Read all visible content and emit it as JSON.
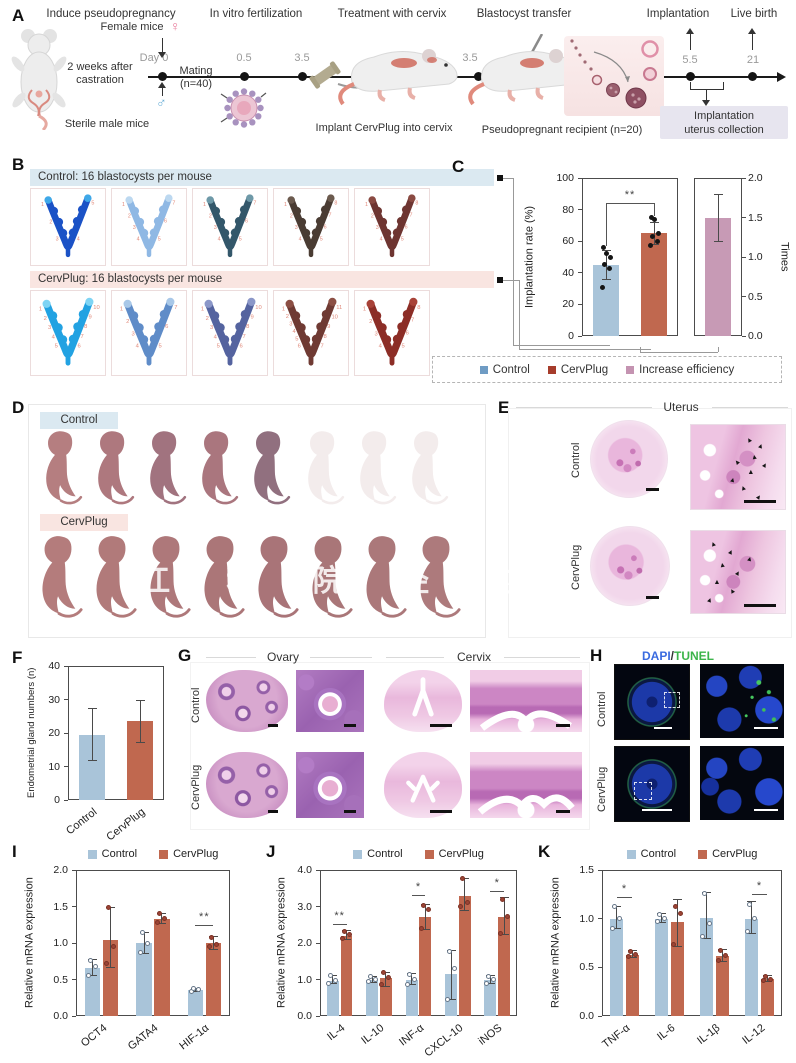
{
  "panelA": {
    "label": "A",
    "stage_titles": [
      "Induce pseudopregnancy",
      "In vitro fertilization",
      "Treatment with cervix",
      "Blastocyst transfer",
      "Implantation",
      "Live birth"
    ],
    "female_label": "Female mice",
    "female_symbol": "♀",
    "male_symbol": "♂",
    "castration1": "2 weeks after",
    "castration2": "castration",
    "male_label": "Sterile male mice",
    "day0": "Day 0",
    "mating1": "Mating",
    "mating2": "(n=40)",
    "t05": "0.5",
    "t35a": "3.5",
    "t35b": "3.5",
    "t55": "5.5",
    "t21": "21",
    "implant_label": "Implant CervPlug into cervix",
    "recipient_label": "Pseudopregnant recipient (n=20)",
    "collection1": "Implantation",
    "collection2": "uterus collection"
  },
  "panelB": {
    "label": "B",
    "control_header": "Control: 16 blastocysts per mouse",
    "cervplug_header": "CervPlug: 16 blastocysts per mouse",
    "control_uteri": [
      {
        "color": "#1b52c6",
        "tip": "#3fa8e8",
        "sites": 5
      },
      {
        "color": "#8fb8e4",
        "tip": "#bcd8f0",
        "sites": 7
      },
      {
        "color": "#33576a",
        "tip": "#6e99a8",
        "sites": 7
      },
      {
        "color": "#4a3c33",
        "tip": "#6b5a4e",
        "sites": 8
      },
      {
        "color": "#6e3531",
        "tip": "#8a4a42",
        "sites": 8
      }
    ],
    "cervplug_uteri": [
      {
        "color": "#22a2e2",
        "tip": "#7fd4f4",
        "sites": 10
      },
      {
        "color": "#5f8cc8",
        "tip": "#a9c8e8",
        "sites": 7
      },
      {
        "color": "#54639f",
        "tip": "#8b97c8",
        "sites": 10
      },
      {
        "color": "#6f3a33",
        "tip": "#8c4f44",
        "sites": 11
      },
      {
        "color": "#8c2d26",
        "tip": "#a84238",
        "sites": 8
      }
    ]
  },
  "panelC": {
    "label": "C",
    "legend": [
      {
        "label": "Control",
        "color": "#6f9cc4"
      },
      {
        "label": "CervPlug",
        "color": "#a63c2b"
      },
      {
        "label": "Increase efficiency",
        "color": "#c493b1"
      }
    ]
  },
  "panelD": {
    "label": "D",
    "control_header": "Control",
    "cervplug_header": "CervPlug",
    "watermark": "江 科 院 经 的",
    "control_pups": [
      "#b57e80",
      "#ae787e",
      "#a1737f",
      "#aa767e",
      "#91707f",
      "#f3ecec",
      "#f3ecec",
      "#f3ecec"
    ],
    "cervplug_pups": [
      "#b47c7c",
      "#b17a7a",
      "#ae787a",
      "#ab7678",
      "#a97478",
      "#a97678",
      "#ab787a",
      "#ad7a7c"
    ]
  },
  "panelE": {
    "label": "E",
    "title": "Uterus",
    "row1": "Control",
    "row2": "CervPlug"
  },
  "panelF": {
    "label": "F"
  },
  "panelG": {
    "label": "G",
    "header1": "Ovary",
    "header2": "Cervix",
    "row1": "Control",
    "row2": "CervPlug"
  },
  "panelH": {
    "label": "H",
    "title_dapi": "DAPI",
    "title_sep": "/",
    "title_tunel": "TUNEL",
    "dapi_color": "#3a6be0",
    "tunel_color": "#3cb44a",
    "row1": "Control",
    "row2": "CervPlug"
  },
  "panelI": {
    "label": "I"
  },
  "panelJ": {
    "label": "J"
  },
  "panelK": {
    "label": "K"
  },
  "colors": {
    "control_bar": "#a9c4d9",
    "cervplug_bar": "#c0684f",
    "efficiency_bar": "#c79ab5",
    "control_band": "#dbe9f1",
    "cervplug_band": "#f9e5e1",
    "collection_box": "#e7e5ef",
    "site_number": "#e0897a"
  },
  "chart_data": [
    {
      "id": "implantation_rate",
      "type": "bar",
      "ylabel": "Implantation rate (%)",
      "ylim": [
        0,
        100
      ],
      "yticks": [
        0,
        20,
        40,
        60,
        80,
        100
      ],
      "ydec": 0,
      "categories": [
        "Control",
        "CervPlug"
      ],
      "show_xticklabels": false,
      "series": [
        {
          "name": "Implantation rate",
          "colors": [
            "#a9c4d9",
            "#c0684f"
          ],
          "values": [
            45,
            65
          ],
          "err": [
            [
              36,
              54
            ],
            [
              58,
              72
            ]
          ],
          "dots": [
            [
              31,
              43,
              45,
              50,
              52,
              56
            ],
            [
              57,
              60,
              63,
              65,
              74,
              75
            ]
          ],
          "dot_style": {
            "fill": "#151515",
            "stroke": "#151515"
          }
        }
      ],
      "sig": [
        {
          "cats": [
            0,
            1
          ],
          "y": 84,
          "label": "**",
          "drops": [
            57,
            76
          ]
        }
      ]
    },
    {
      "id": "increase_efficiency",
      "type": "bar",
      "ylabel": "Times",
      "yaxis": "right",
      "ylim": [
        0,
        2
      ],
      "yticks": [
        0,
        0.5,
        1,
        1.5,
        2
      ],
      "ydec": 1,
      "categories": [
        "Increase efficiency"
      ],
      "show_xticklabels": false,
      "series": [
        {
          "name": "Increase efficiency",
          "colors": [
            "#c79ab5"
          ],
          "values": [
            1.49
          ],
          "err": [
            [
              1.2,
              1.79
            ]
          ]
        }
      ]
    },
    {
      "id": "endometrial_glands",
      "type": "bar",
      "ylabel": "Endometrial gland numbers (n)",
      "ylim": [
        0,
        40
      ],
      "yticks": [
        0,
        10,
        20,
        30,
        40
      ],
      "ydec": 0,
      "categories": [
        "Control",
        "CervPlug"
      ],
      "rot_xticklabels": true,
      "series": [
        {
          "name": "Gland numbers",
          "colors": [
            "#a9c4d9",
            "#c0684f"
          ],
          "values": [
            19.5,
            23.5
          ],
          "err": [
            [
              11.8,
              27.3
            ],
            [
              17.3,
              29.8
            ]
          ]
        }
      ]
    },
    {
      "id": "mrna_stemness",
      "type": "bar",
      "ylabel": "Relative mRNA expression",
      "ylim": [
        0,
        2
      ],
      "yticks": [
        0,
        0.5,
        1,
        1.5,
        2
      ],
      "ydec": 1,
      "categories": [
        "OCT4",
        "GATA4",
        "HIF-1α"
      ],
      "rot_xticklabels": true,
      "legend": [
        "Control",
        "CervPlug"
      ],
      "series": [
        {
          "name": "Control",
          "color": "#a9c4d9",
          "values": [
            0.66,
            1.0,
            0.35
          ],
          "err": [
            [
              0.55,
              0.77
            ],
            [
              0.86,
              1.15
            ],
            [
              0.33,
              0.37
            ]
          ],
          "dots": [
            [
              0.55,
              0.68,
              0.76
            ],
            [
              0.87,
              1.0,
              1.14
            ],
            [
              0.34,
              0.36,
              0.37
            ]
          ],
          "dot_style": {
            "fill": "#ffffff",
            "stroke": "#68788a"
          }
        },
        {
          "name": "CervPlug",
          "color": "#c0684f",
          "values": [
            1.04,
            1.33,
            1.0
          ],
          "err": [
            [
              0.66,
              1.48
            ],
            [
              1.27,
              1.4
            ],
            [
              0.91,
              1.09
            ]
          ],
          "dots": [
            [
              0.72,
              0.95,
              1.48
            ],
            [
              1.28,
              1.33,
              1.4
            ],
            [
              0.95,
              0.98,
              1.08
            ]
          ],
          "dot_style": {
            "fill": "#9c4435",
            "stroke": "#7c3225"
          }
        }
      ],
      "sig": [
        {
          "group": 2,
          "y": 1.25,
          "label": "**"
        }
      ]
    },
    {
      "id": "mrna_cytokines_up",
      "type": "bar",
      "ylabel": "Relative mRNA expression",
      "ylim": [
        0,
        4
      ],
      "yticks": [
        0,
        1,
        2,
        3,
        4
      ],
      "ydec": 1,
      "categories": [
        "IL-4",
        "IL-10",
        "INF-α",
        "CXCL-10",
        "iNOS"
      ],
      "rot_xticklabels": true,
      "legend": [
        "Control",
        "CervPlug"
      ],
      "series": [
        {
          "name": "Control",
          "color": "#a9c4d9",
          "values": [
            0.97,
            1.0,
            1.0,
            1.15,
            1.0
          ],
          "err": [
            [
              0.9,
              1.1
            ],
            [
              0.93,
              1.08
            ],
            [
              0.85,
              1.16
            ],
            [
              0.45,
              1.8
            ],
            [
              0.88,
              1.1
            ]
          ],
          "dots": [
            [
              0.9,
              0.98,
              1.1
            ],
            [
              0.95,
              1.0,
              1.07
            ],
            [
              0.86,
              1.0,
              1.15
            ],
            [
              0.46,
              1.3,
              1.78
            ],
            [
              0.9,
              1.0,
              1.08
            ]
          ],
          "dot_style": {
            "fill": "#ffffff",
            "stroke": "#68788a"
          }
        },
        {
          "name": "CervPlug",
          "color": "#c0684f",
          "values": [
            2.2,
            1.03,
            2.72,
            3.3,
            2.72
          ],
          "err": [
            [
              2.1,
              2.33
            ],
            [
              0.82,
              1.2
            ],
            [
              2.36,
              3.05
            ],
            [
              2.9,
              3.78
            ],
            [
              2.22,
              3.25
            ]
          ],
          "dots": [
            [
              2.12,
              2.22,
              2.32
            ],
            [
              0.85,
              1.05,
              1.18
            ],
            [
              2.4,
              2.92,
              3.02
            ],
            [
              3.0,
              3.12,
              3.76
            ],
            [
              2.26,
              2.72,
              3.2
            ]
          ],
          "dot_style": {
            "fill": "#9c4435",
            "stroke": "#7c3225"
          }
        }
      ],
      "sig": [
        {
          "group": 0,
          "y": 2.52,
          "label": "**"
        },
        {
          "group": 2,
          "y": 3.32,
          "label": "*"
        },
        {
          "group": 4,
          "y": 3.42,
          "label": "*"
        }
      ]
    },
    {
      "id": "mrna_cytokines_down",
      "type": "bar",
      "ylabel": "Relative mRNA expression",
      "ylim": [
        0,
        1.5
      ],
      "yticks": [
        0,
        0.5,
        1,
        1.5
      ],
      "ydec": 1,
      "categories": [
        "TNF-α",
        "IL-6",
        "IL-1β",
        "IL-12"
      ],
      "rot_xticklabels": true,
      "legend": [
        "Control",
        "CervPlug"
      ],
      "series": [
        {
          "name": "Control",
          "color": "#a9c4d9",
          "values": [
            1.0,
            1.0,
            1.01,
            1.0
          ],
          "err": [
            [
              0.9,
              1.12
            ],
            [
              0.96,
              1.05
            ],
            [
              0.8,
              1.27
            ],
            [
              0.85,
              1.18
            ]
          ],
          "dots": [
            [
              0.9,
              1.0,
              1.12
            ],
            [
              0.97,
              1.0,
              1.04
            ],
            [
              0.82,
              0.95,
              1.26
            ],
            [
              0.87,
              1.0,
              1.15
            ]
          ],
          "dot_style": {
            "fill": "#ffffff",
            "stroke": "#68788a"
          }
        },
        {
          "name": "CervPlug",
          "color": "#c0684f",
          "values": [
            0.63,
            0.97,
            0.62,
            0.38
          ],
          "err": [
            [
              0.6,
              0.67
            ],
            [
              0.71,
              1.2
            ],
            [
              0.56,
              0.68
            ],
            [
              0.35,
              0.42
            ]
          ],
          "dots": [
            [
              0.61,
              0.63,
              0.66
            ],
            [
              0.73,
              1.05,
              1.12
            ],
            [
              0.57,
              0.62,
              0.67
            ],
            [
              0.36,
              0.38,
              0.41
            ]
          ],
          "dot_style": {
            "fill": "#9c4435",
            "stroke": "#7c3225"
          }
        }
      ],
      "sig": [
        {
          "group": 0,
          "y": 1.22,
          "label": "*"
        },
        {
          "group": 3,
          "y": 1.25,
          "label": "*"
        }
      ]
    }
  ]
}
